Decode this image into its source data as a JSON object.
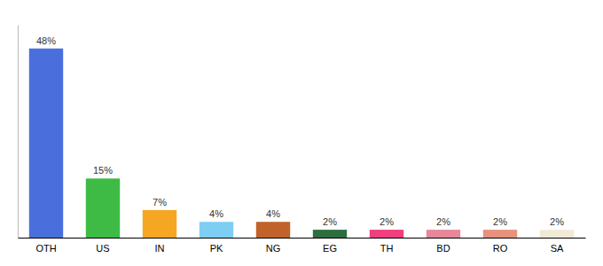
{
  "chart_data": {
    "type": "bar",
    "categories": [
      "OTH",
      "US",
      "IN",
      "PK",
      "NG",
      "EG",
      "TH",
      "BD",
      "RO",
      "SA"
    ],
    "values": [
      48,
      15,
      7,
      4,
      4,
      2,
      2,
      2,
      2,
      2
    ],
    "value_labels": [
      "48%",
      "15%",
      "7%",
      "4%",
      "4%",
      "2%",
      "2%",
      "2%",
      "2%",
      "2%"
    ],
    "colors": [
      "#4a6fdc",
      "#3dbb45",
      "#f5a623",
      "#7ecef4",
      "#c0622a",
      "#2d6e3e",
      "#f03e7e",
      "#e8879a",
      "#e8927d",
      "#f0ead6"
    ],
    "ylim": [
      0,
      54
    ],
    "data_labels": true,
    "tick_labels": "x",
    "grid": false
  }
}
